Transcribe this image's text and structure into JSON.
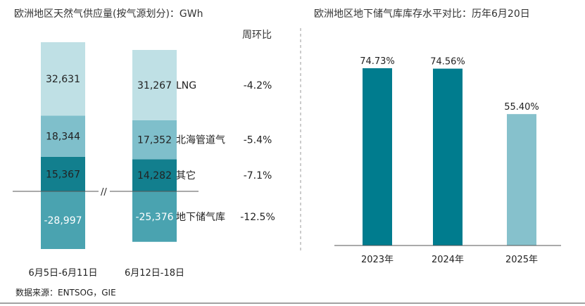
{
  "left_chart": {
    "title": "欧洲地区天然气供应量(按气源划分)：GWh",
    "wow_header": "周环比",
    "series": [
      {
        "name": "LNG",
        "color": "#bfe0e5",
        "values": [
          32631,
          31267
        ],
        "labels": [
          "32,631",
          "31,267"
        ],
        "wow": "-4.2%"
      },
      {
        "name": "北海管道气",
        "color": "#7fbfcb",
        "values": [
          18344,
          17352
        ],
        "labels": [
          "18,344",
          "17,352"
        ],
        "wow": "-5.4%"
      },
      {
        "name": "其它",
        "color": "#127f8e",
        "values": [
          15367,
          14282
        ],
        "labels": [
          "15,367",
          "14,282"
        ],
        "wow": "-7.1%"
      },
      {
        "name": "地下储气库",
        "color": "#4aa3b0",
        "values": [
          -28997,
          -25376
        ],
        "labels": [
          "-28,997",
          "-25,376"
        ],
        "wow": "-12.5%"
      }
    ],
    "categories": [
      "6月5日-6月11日",
      "6月12日-18日"
    ],
    "axis_break": "//"
  },
  "right_chart": {
    "title": "欧洲地区地下储气库库存水平对比：历年6月20日",
    "categories": [
      "2023年",
      "2024年",
      "2025年"
    ],
    "values": [
      74.73,
      74.56,
      55.4
    ],
    "labels": [
      "74.73%",
      "74.56%",
      "55.40%"
    ],
    "colors": [
      "#007c8e",
      "#007c8e",
      "#86c1cc"
    ]
  },
  "chart_data": [
    {
      "type": "bar",
      "title": "欧洲地区天然气供应量(按气源划分)：GWh",
      "categories": [
        "6月5日-6月11日",
        "6月12日-18日"
      ],
      "series": [
        {
          "name": "LNG",
          "values": [
            32631,
            31267
          ]
        },
        {
          "name": "北海管道气",
          "values": [
            18344,
            17352
          ]
        },
        {
          "name": "其它",
          "values": [
            15367,
            14282
          ]
        },
        {
          "name": "地下储气库",
          "values": [
            -28997,
            -25376
          ]
        }
      ],
      "stacked": true
    },
    {
      "type": "bar",
      "title": "欧洲地区地下储气库库存水平对比：历年6月20日",
      "categories": [
        "2023年",
        "2024年",
        "2025年"
      ],
      "values": [
        74.73,
        74.56,
        55.4
      ]
    }
  ],
  "source": "数据来源：ENTSOG，GIE"
}
